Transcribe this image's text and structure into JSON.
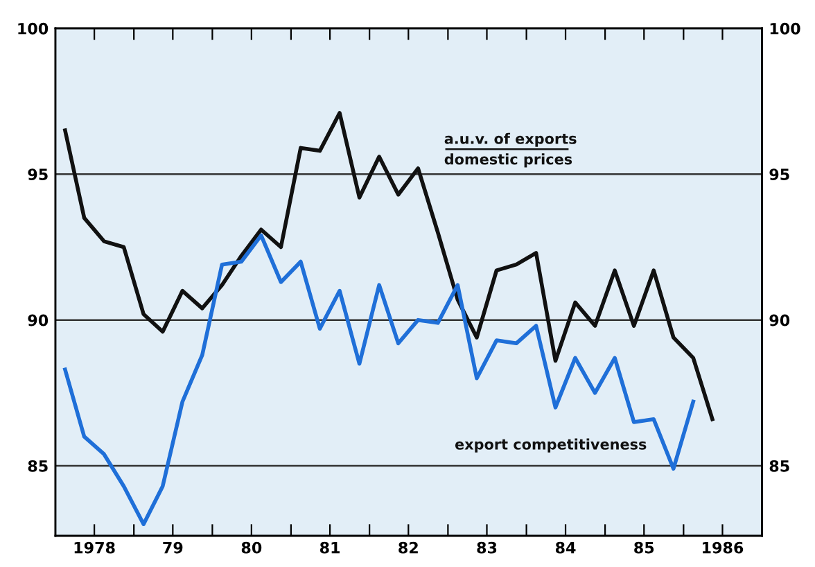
{
  "chart_data": {
    "type": "line",
    "x": [
      "1978-02-15",
      "1978-05-15",
      "1978-08-15",
      "1978-11-15",
      "1979-02-15",
      "1979-05-15",
      "1979-08-15",
      "1979-11-15",
      "1980-02-15",
      "1980-05-15",
      "1980-08-15",
      "1980-11-15",
      "1981-02-15",
      "1981-05-15",
      "1981-08-15",
      "1981-11-15",
      "1982-02-15",
      "1982-05-15",
      "1982-08-15",
      "1982-11-15",
      "1983-02-15",
      "1983-05-15",
      "1983-08-15",
      "1983-11-15",
      "1984-02-15",
      "1984-05-15",
      "1984-08-15",
      "1984-11-15",
      "1985-02-15",
      "1985-05-15",
      "1985-08-15",
      "1985-11-15",
      "1986-02-15",
      "1986-05-15"
    ],
    "series": [
      {
        "name": "a.u.v. of exports\ndomestic prices",
        "color": "#111111",
        "values": [
          96.5,
          93.5,
          92.7,
          92.5,
          90.2,
          89.6,
          91.0,
          90.4,
          91.2,
          92.2,
          93.1,
          92.5,
          95.9,
          95.8,
          97.1,
          94.2,
          95.6,
          94.3,
          95.2,
          93.0,
          90.7,
          89.4,
          91.7,
          91.9,
          92.3,
          88.6,
          90.6,
          89.8,
          91.7,
          89.8,
          91.7,
          89.4,
          88.7,
          86.6
        ]
      },
      {
        "name": "export competitiveness",
        "color": "#1f6fd8",
        "values": [
          88.3,
          86.0,
          85.4,
          84.3,
          83.0,
          84.3,
          87.2,
          88.8,
          91.9,
          92.0,
          92.9,
          91.3,
          92.0,
          89.7,
          91.0,
          88.5,
          91.2,
          89.2,
          90.0,
          89.9,
          91.2,
          88.0,
          89.3,
          89.2,
          89.8,
          87.0,
          88.7,
          87.5,
          88.7,
          86.5,
          86.6,
          84.9,
          87.2,
          null
        ]
      }
    ],
    "xlim": [
      "1978-01-01",
      "1987-01-01"
    ],
    "xticks": [
      {
        "value": "1978-07-01",
        "label": "1978"
      },
      {
        "value": "1979-01-01",
        "label": null
      },
      {
        "value": "1979-07-01",
        "label": "79"
      },
      {
        "value": "1980-01-01",
        "label": null
      },
      {
        "value": "1980-07-01",
        "label": "80"
      },
      {
        "value": "1981-01-01",
        "label": null
      },
      {
        "value": "1981-07-01",
        "label": "81"
      },
      {
        "value": "1982-01-01",
        "label": null
      },
      {
        "value": "1982-07-01",
        "label": "82"
      },
      {
        "value": "1983-01-01",
        "label": null
      },
      {
        "value": "1983-07-01",
        "label": "83"
      },
      {
        "value": "1984-01-01",
        "label": null
      },
      {
        "value": "1984-07-01",
        "label": "84"
      },
      {
        "value": "1985-01-01",
        "label": null
      },
      {
        "value": "1985-07-01",
        "label": "85"
      },
      {
        "value": "1986-01-01",
        "label": null
      },
      {
        "value": "1986-07-01",
        "label": "1986"
      }
    ],
    "ylim": [
      82.6,
      100
    ],
    "yticks": [
      85,
      90,
      95,
      100
    ],
    "y2lim": [
      82.6,
      100
    ],
    "y2ticks": [
      85,
      90,
      95,
      100
    ],
    "grid": "y",
    "legend": false,
    "line_style": "solid",
    "marker": "none"
  }
}
